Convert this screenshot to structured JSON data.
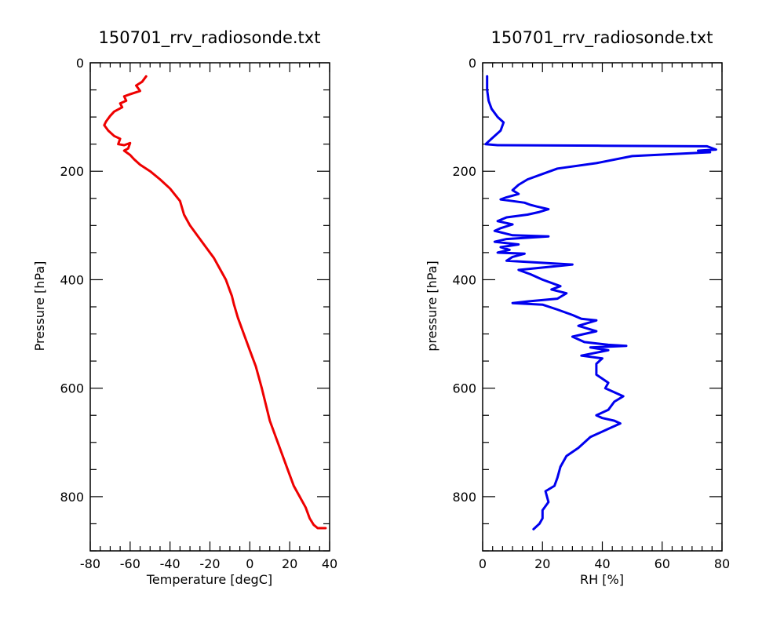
{
  "chart_data": [
    {
      "type": "line",
      "title": "150701_rrv_radiosonde.txt",
      "xlabel": "Temperature [degC]",
      "ylabel": "Pressure [hPa]",
      "xlim": [
        -80,
        40
      ],
      "ylim": [
        0,
        900
      ],
      "y_inverted": true,
      "xticks": [
        -80,
        -60,
        -40,
        -20,
        0,
        20,
        40
      ],
      "yticks": [
        0,
        200,
        400,
        600,
        800
      ],
      "grid": false,
      "line_color": "#ee0000",
      "series": [
        {
          "x": [
            -52,
            -54,
            -57,
            -55,
            -60,
            -63,
            -62,
            -65,
            -64,
            -68,
            -70,
            -72,
            -73,
            -71,
            -68,
            -65,
            -66,
            -63,
            -60,
            -61,
            -63,
            -60,
            -58,
            -55,
            -50,
            -45,
            -40,
            -35,
            -33,
            -30,
            -26,
            -22,
            -18,
            -15,
            -12,
            -10,
            -9,
            -8,
            -6,
            -3,
            0,
            3,
            6,
            8,
            10,
            13,
            16,
            19,
            22,
            25,
            28,
            30,
            32,
            34,
            38
          ],
          "y": [
            25,
            35,
            42,
            52,
            58,
            62,
            70,
            75,
            82,
            90,
            98,
            108,
            115,
            125,
            135,
            140,
            150,
            152,
            148,
            158,
            162,
            170,
            178,
            188,
            200,
            215,
            232,
            255,
            280,
            300,
            320,
            340,
            360,
            380,
            400,
            420,
            430,
            445,
            470,
            500,
            530,
            560,
            600,
            630,
            660,
            690,
            720,
            750,
            780,
            800,
            820,
            840,
            852,
            858,
            858
          ]
        }
      ]
    },
    {
      "type": "line",
      "title": "150701_rrv_radiosonde.txt",
      "xlabel": "RH [%]",
      "ylabel": "pressure [hPa]",
      "xlim": [
        0,
        80
      ],
      "ylim": [
        0,
        900
      ],
      "y_inverted": true,
      "xticks": [
        0,
        20,
        40,
        60,
        80
      ],
      "yticks": [
        0,
        200,
        400,
        600,
        800
      ],
      "grid": false,
      "line_color": "#0000ee",
      "series": [
        {
          "x": [
            1.5,
            1.5,
            2,
            3,
            5,
            7,
            6,
            3,
            1,
            5,
            40,
            75,
            78,
            72,
            76,
            50,
            38,
            25,
            20,
            15,
            12,
            10,
            12,
            8,
            6,
            10,
            14,
            16,
            18,
            22,
            19,
            15,
            8,
            5,
            10,
            6,
            4,
            10,
            22,
            8,
            4,
            12,
            6,
            9,
            5,
            14,
            10,
            8,
            30,
            12,
            16,
            20,
            26,
            23,
            28,
            25,
            15,
            10,
            20,
            25,
            30,
            33,
            38,
            32,
            38,
            30,
            34,
            42,
            48,
            36,
            42,
            33,
            40,
            38,
            38,
            42,
            41,
            43,
            47,
            44,
            42,
            38,
            40,
            44,
            46,
            42,
            36,
            32,
            28,
            26,
            25,
            24,
            21,
            22,
            20,
            20,
            19,
            17
          ],
          "y": [
            25,
            50,
            70,
            85,
            100,
            110,
            125,
            140,
            150,
            152,
            153,
            154,
            160,
            162,
            165,
            172,
            185,
            195,
            205,
            215,
            225,
            235,
            242,
            248,
            252,
            255,
            258,
            262,
            265,
            270,
            275,
            280,
            285,
            292,
            298,
            305,
            310,
            318,
            320,
            325,
            330,
            335,
            340,
            345,
            350,
            352,
            358,
            365,
            372,
            382,
            390,
            400,
            412,
            418,
            425,
            435,
            440,
            443,
            446,
            455,
            465,
            472,
            475,
            485,
            495,
            505,
            515,
            520,
            522,
            525,
            530,
            540,
            545,
            555,
            575,
            590,
            600,
            605,
            615,
            625,
            640,
            650,
            655,
            660,
            665,
            675,
            690,
            710,
            725,
            745,
            765,
            780,
            790,
            810,
            825,
            840,
            850,
            860
          ]
        }
      ]
    }
  ]
}
